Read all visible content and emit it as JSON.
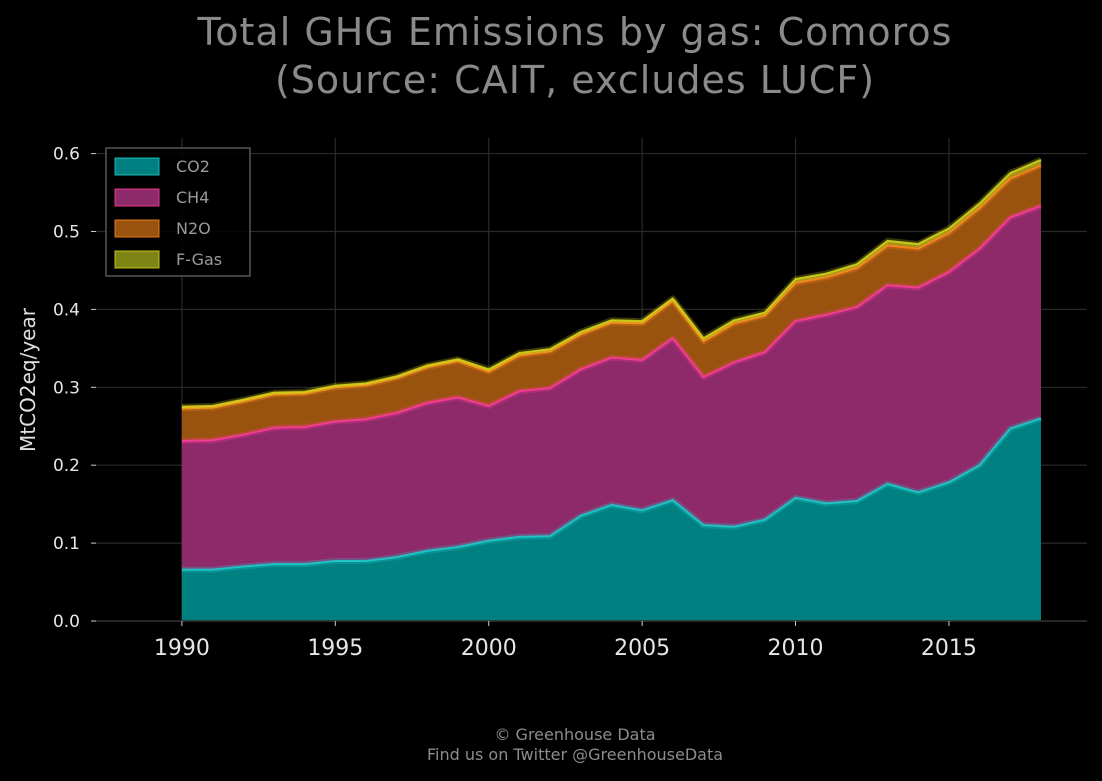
{
  "title_line_1": "Total GHG Emissions by gas: Comoros",
  "title_line_2": "(Source: CAIT, excludes LUCF)",
  "credit_line_1": "© Greenhouse Data",
  "credit_line_2": "Find us on Twitter @GreenhouseData",
  "chart_data": {
    "type": "area",
    "stacked": true,
    "title": "Total GHG Emissions by gas: Comoros (Source: CAIT, excludes LUCF)",
    "xlabel": "",
    "ylabel": "MtCO2eq/year",
    "xlim": [
      1987.2,
      2019.5
    ],
    "ylim": [
      0,
      0.62
    ],
    "xticks": [
      1990,
      1995,
      2000,
      2005,
      2010,
      2015
    ],
    "yticks": [
      "0.0",
      "0.1",
      "0.2",
      "0.3",
      "0.4",
      "0.5",
      "0.6"
    ],
    "grid": true,
    "legend_position": "top-left",
    "x": [
      1990,
      1991,
      1992,
      1993,
      1994,
      1995,
      1996,
      1997,
      1998,
      1999,
      2000,
      2001,
      2002,
      2003,
      2004,
      2005,
      2006,
      2007,
      2008,
      2009,
      2010,
      2011,
      2012,
      2013,
      2014,
      2015,
      2016,
      2017,
      2018
    ],
    "series": [
      {
        "name": "CO2",
        "fill": "#008080",
        "line": "#1ecfcf",
        "values": [
          0.066,
          0.066,
          0.07,
          0.073,
          0.073,
          0.077,
          0.077,
          0.082,
          0.09,
          0.095,
          0.103,
          0.108,
          0.109,
          0.135,
          0.149,
          0.142,
          0.155,
          0.123,
          0.121,
          0.13,
          0.158,
          0.151,
          0.154,
          0.176,
          0.165,
          0.178,
          0.2,
          0.247,
          0.26
        ]
      },
      {
        "name": "CH4",
        "fill": "#8f2a6a",
        "line": "#ff3d9a",
        "values": [
          0.165,
          0.166,
          0.169,
          0.175,
          0.176,
          0.179,
          0.182,
          0.185,
          0.19,
          0.192,
          0.173,
          0.187,
          0.19,
          0.188,
          0.189,
          0.193,
          0.208,
          0.19,
          0.211,
          0.215,
          0.227,
          0.242,
          0.249,
          0.255,
          0.263,
          0.27,
          0.278,
          0.271,
          0.273
        ]
      },
      {
        "name": "N2O",
        "fill": "#9a520f",
        "line": "#ff8a1e",
        "values": [
          0.042,
          0.042,
          0.043,
          0.043,
          0.043,
          0.044,
          0.044,
          0.045,
          0.046,
          0.047,
          0.044,
          0.046,
          0.047,
          0.045,
          0.045,
          0.047,
          0.048,
          0.046,
          0.05,
          0.047,
          0.049,
          0.048,
          0.05,
          0.051,
          0.05,
          0.05,
          0.052,
          0.05,
          0.052
        ]
      },
      {
        "name": "F-Gas",
        "fill": "#7f8514",
        "line": "#d8d81a",
        "values": [
          0.002,
          0.002,
          0.002,
          0.002,
          0.002,
          0.002,
          0.002,
          0.002,
          0.002,
          0.002,
          0.003,
          0.003,
          0.003,
          0.003,
          0.003,
          0.003,
          0.003,
          0.004,
          0.004,
          0.004,
          0.005,
          0.005,
          0.005,
          0.006,
          0.006,
          0.006,
          0.006,
          0.007,
          0.007
        ]
      }
    ]
  }
}
